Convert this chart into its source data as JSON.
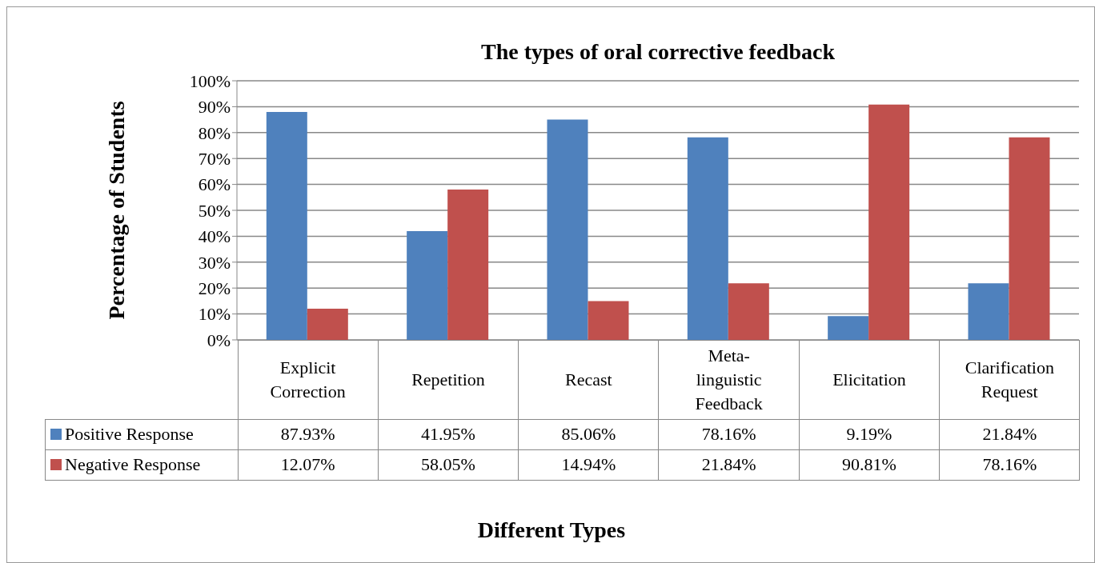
{
  "chart_data": {
    "type": "bar",
    "title": "The types of oral corrective feedback",
    "annotations": [
      "Different Types"
    ],
    "ylabel": "Percentage of Students",
    "categories": [
      "Explicit Correction",
      "Repetition",
      "Recast",
      "Meta-linguistic Feedback",
      "Elicitation",
      "Clarification Request"
    ],
    "series": [
      {
        "name": "Positive Response",
        "color": "#4f81bd",
        "values": [
          87.93,
          41.95,
          85.06,
          78.16,
          9.19,
          21.84
        ],
        "value_labels": [
          "87.93%",
          "41.95%",
          "85.06%",
          "78.16%",
          "9.19%",
          "21.84%"
        ]
      },
      {
        "name": "Negative Response",
        "color": "#c0504d",
        "values": [
          12.07,
          58.05,
          14.94,
          21.84,
          90.81,
          78.16
        ],
        "value_labels": [
          "12.07%",
          "58.05%",
          "14.94%",
          "21.84%",
          "90.81%",
          "78.16%"
        ]
      }
    ],
    "ylim": [
      0,
      100
    ],
    "yticks": [
      {
        "value": 0,
        "label": "0%"
      },
      {
        "value": 10,
        "label": "10%"
      },
      {
        "value": 20,
        "label": "20%"
      },
      {
        "value": 30,
        "label": "30%"
      },
      {
        "value": 40,
        "label": "40%"
      },
      {
        "value": 50,
        "label": "50%"
      },
      {
        "value": 60,
        "label": "60%"
      },
      {
        "value": 70,
        "label": "70%"
      },
      {
        "value": 80,
        "label": "80%"
      },
      {
        "value": 90,
        "label": "90%"
      },
      {
        "value": 100,
        "label": "100%"
      }
    ],
    "grid": "y",
    "legend": "bottom left"
  }
}
